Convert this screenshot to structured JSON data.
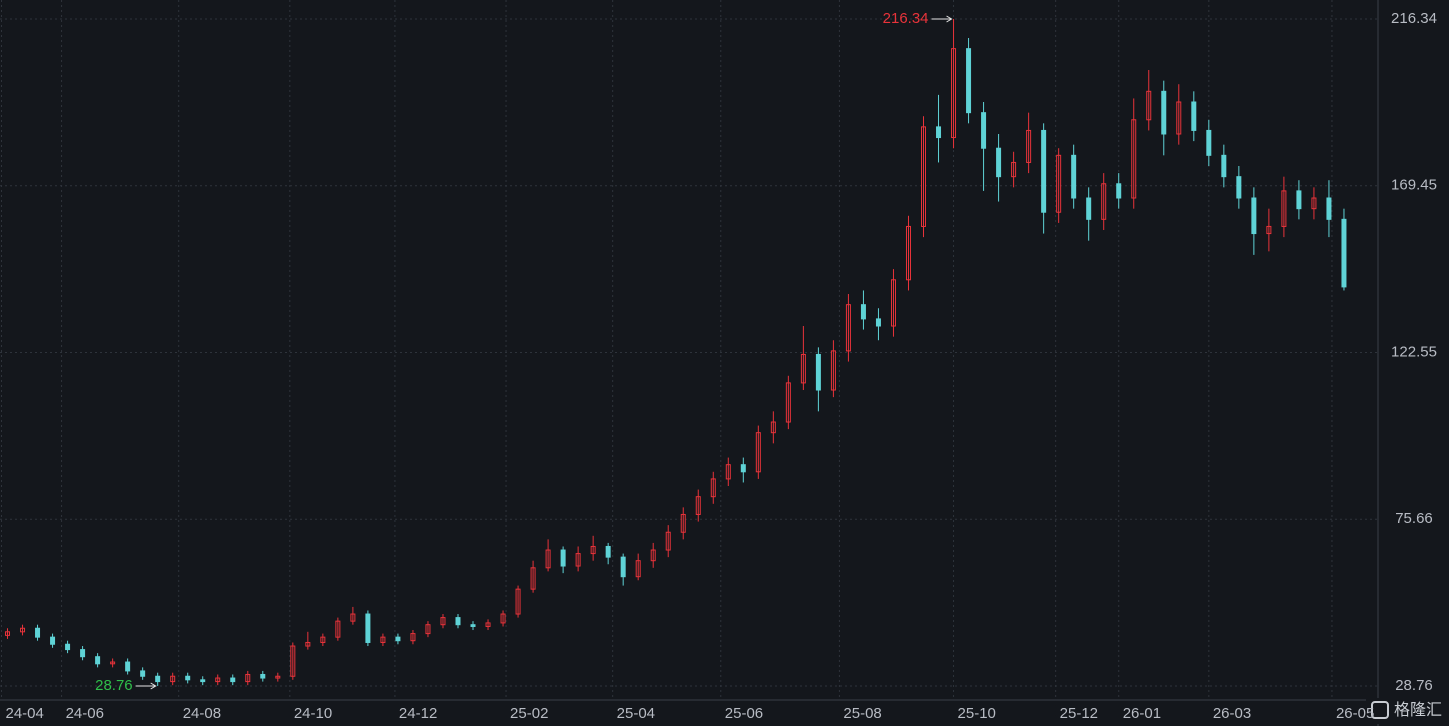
{
  "chart_data": {
    "type": "candlestick",
    "up_color": "#e8333a",
    "down_color": "#5fd3d6",
    "ylim": [
      28.76,
      216.34
    ],
    "yticks": [
      28.76,
      75.66,
      122.55,
      169.45,
      216.34
    ],
    "xlim": [
      -0.5,
      91.2
    ],
    "xticks": [
      {
        "value": -0.4,
        "label": "24-04"
      },
      {
        "value": 3.6,
        "label": "24-06"
      },
      {
        "value": 11.4,
        "label": "24-08"
      },
      {
        "value": 18.8,
        "label": "24-10"
      },
      {
        "value": 25.8,
        "label": "24-12"
      },
      {
        "value": 33.2,
        "label": "25-02"
      },
      {
        "value": 40.3,
        "label": "25-04"
      },
      {
        "value": 47.5,
        "label": "25-06"
      },
      {
        "value": 55.4,
        "label": "25-08"
      },
      {
        "value": 63,
        "label": "25-10"
      },
      {
        "value": 69.8,
        "label": "25-12"
      },
      {
        "value": 74,
        "label": "26-01"
      },
      {
        "value": 80,
        "label": "26-03"
      },
      {
        "value": 88.2,
        "label": "26-05"
      }
    ],
    "grid": true,
    "open": [
      43,
      44,
      45,
      42.5,
      40.5,
      39,
      37,
      35,
      35.5,
      33,
      31.5,
      30,
      31.5,
      30.5,
      30,
      31,
      30,
      32,
      31,
      31.5,
      40,
      41,
      42.5,
      47,
      49,
      41,
      42.5,
      41.5,
      43.5,
      46,
      48,
      46,
      45.5,
      46.5,
      49,
      56,
      62,
      67,
      62.5,
      66,
      68,
      65,
      59.5,
      64,
      67,
      72,
      77,
      82,
      87,
      91,
      89,
      100,
      103,
      114,
      122,
      112,
      123,
      136,
      132,
      130,
      143,
      158,
      186,
      183,
      208,
      190,
      180,
      172,
      176,
      185,
      162,
      178,
      166,
      160,
      170,
      166,
      188,
      196,
      184,
      193,
      185,
      178,
      172,
      166,
      156,
      158,
      168,
      163,
      166,
      160
    ],
    "high": [
      45,
      46,
      46,
      43.5,
      41.5,
      40,
      38,
      36.5,
      36.5,
      34,
      32.5,
      32.5,
      32.5,
      31.5,
      32,
      32,
      33,
      33,
      32.5,
      41,
      44,
      43.5,
      48,
      51,
      50,
      43.5,
      43.5,
      44.5,
      47,
      49,
      49,
      47,
      47.5,
      50,
      57,
      64,
      70,
      68,
      68,
      71,
      69,
      66,
      66,
      69,
      74,
      79,
      84,
      89,
      93,
      93,
      102,
      106,
      116,
      130,
      124,
      126,
      139,
      140,
      135,
      146,
      161,
      189,
      195,
      216.34,
      211,
      193,
      184,
      179,
      190,
      187,
      180,
      181,
      169,
      173,
      173,
      194,
      202,
      199,
      198,
      196,
      188,
      181,
      175,
      169,
      163,
      172,
      171,
      169,
      171,
      163
    ],
    "low": [
      42,
      43,
      41.5,
      39.5,
      38,
      36,
      34,
      34,
      32,
      30.5,
      28.76,
      29,
      29.5,
      29,
      29,
      29,
      29,
      30,
      30,
      30.5,
      39,
      40,
      41.5,
      46,
      40,
      40,
      40.5,
      40.5,
      42.5,
      45,
      45,
      44.5,
      44.5,
      45.5,
      48,
      55,
      61,
      60.5,
      61,
      64,
      63,
      57,
      58.5,
      62,
      65,
      70,
      75,
      80,
      85,
      86,
      87,
      97,
      101,
      112,
      106,
      110,
      120,
      129,
      126,
      127,
      140,
      155,
      176,
      180,
      187,
      168,
      165,
      169,
      173,
      156,
      159,
      163,
      154,
      157,
      163,
      163,
      185,
      178,
      181,
      182,
      175,
      169,
      163,
      150,
      151,
      155,
      160,
      160,
      155,
      140
    ],
    "close": [
      44,
      45,
      42.5,
      40.5,
      39,
      37,
      35,
      35.5,
      33,
      31.5,
      30,
      31.5,
      30.5,
      30,
      31,
      30,
      32,
      31,
      31.5,
      40,
      41,
      42.5,
      47,
      49,
      41,
      42.5,
      41.5,
      43.5,
      46,
      48,
      46,
      45.5,
      46.5,
      49,
      56,
      62,
      67,
      62.5,
      66,
      68,
      65,
      59.5,
      64,
      67,
      72,
      77,
      82,
      87,
      91,
      89,
      100,
      103,
      114,
      122,
      112,
      123,
      136,
      132,
      130,
      143,
      158,
      186,
      183,
      208,
      190,
      180,
      172,
      176,
      185,
      162,
      178,
      166,
      160,
      170,
      166,
      188,
      196,
      184,
      193,
      185,
      178,
      172,
      166,
      156,
      158,
      168,
      163,
      166,
      160,
      141
    ],
    "annotations": [
      {
        "label": "216.34",
        "value": 216.34,
        "color": "#e8333a"
      },
      {
        "label": "28.76",
        "value": 28.76,
        "color": "#2fbf4a"
      }
    ]
  },
  "watermark": "格隆汇"
}
